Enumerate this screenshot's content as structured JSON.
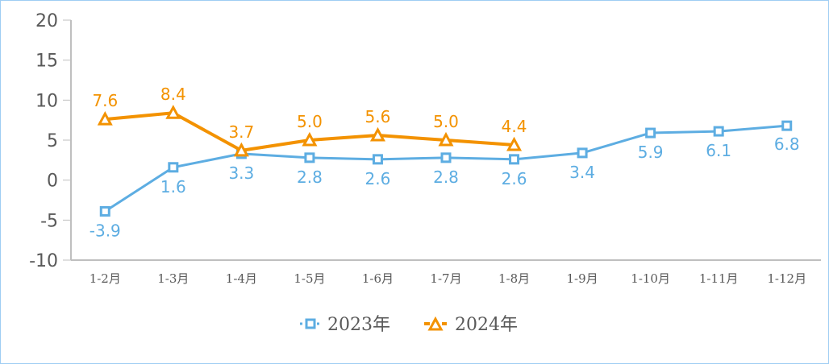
{
  "chart_data": {
    "type": "line",
    "title": "",
    "xlabel": "",
    "ylabel": "",
    "ylim": [
      -10,
      20
    ],
    "yticks": [
      20,
      15,
      10,
      5,
      0,
      -5,
      -10
    ],
    "grid": false,
    "legend_position": "bottom",
    "categories": [
      "1-2月",
      "1-3月",
      "1-4月",
      "1-5月",
      "1-6月",
      "1-7月",
      "1-8月",
      "1-9月",
      "1-10月",
      "1-11月",
      "1-12月"
    ],
    "series": [
      {
        "name": "2023年",
        "color": "#5dade2",
        "marker": "square",
        "values": [
          -3.9,
          1.6,
          3.3,
          2.8,
          2.6,
          2.8,
          2.6,
          3.4,
          5.9,
          6.1,
          6.8
        ],
        "labels": [
          "-3.9",
          "1.6",
          "3.3",
          "2.8",
          "2.6",
          "2.8",
          "2.6",
          "3.4",
          "5.9",
          "6.1",
          "6.8"
        ]
      },
      {
        "name": "2024年",
        "color": "#f39200",
        "marker": "triangle",
        "values": [
          7.6,
          8.4,
          3.7,
          5.0,
          5.6,
          5.0,
          4.4,
          null,
          null,
          null,
          null
        ],
        "labels": [
          "7.6",
          "8.4",
          "3.7",
          "5.0",
          "5.6",
          "5.0",
          "4.4"
        ]
      }
    ]
  }
}
